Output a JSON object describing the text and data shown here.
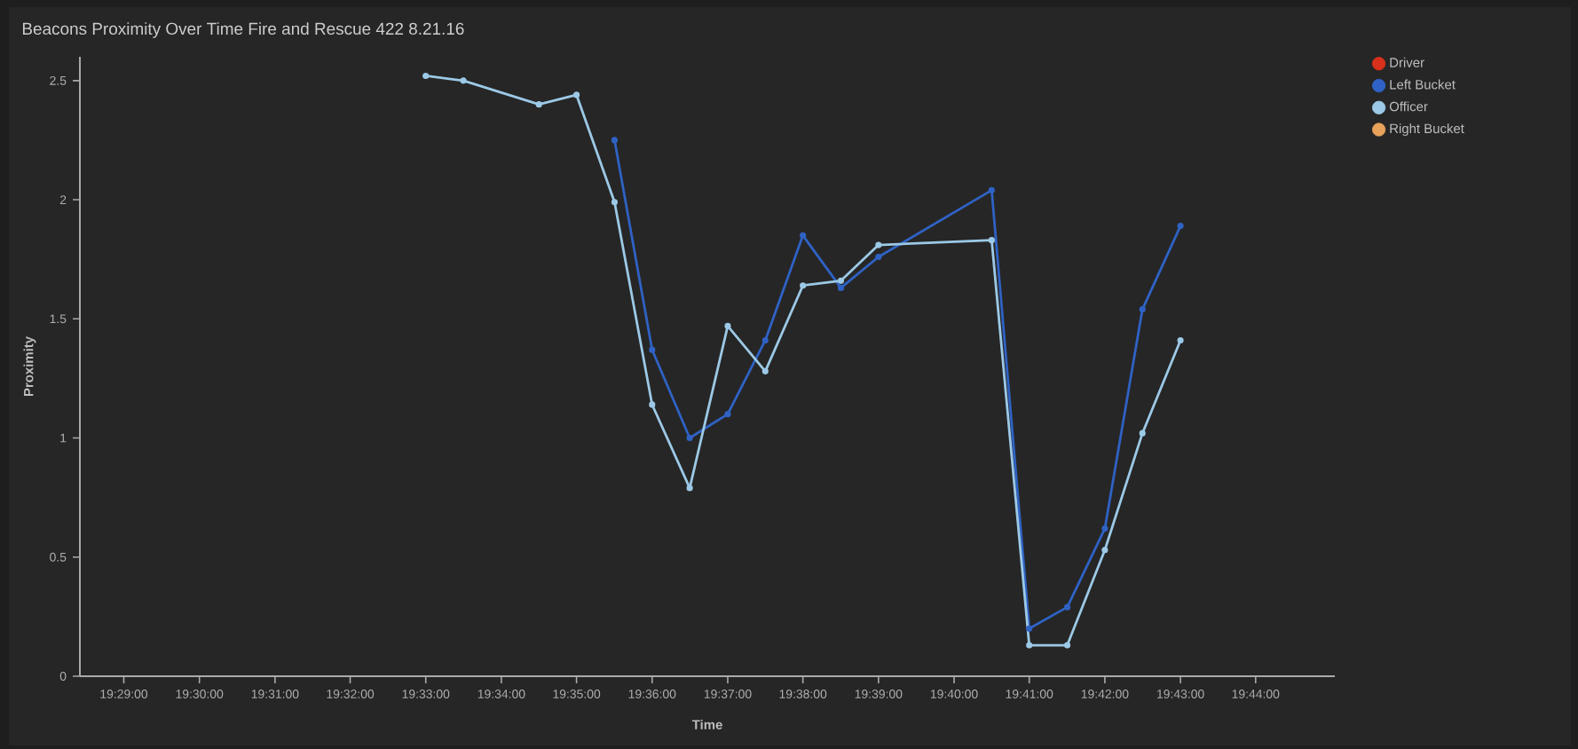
{
  "chart_data": {
    "type": "line",
    "title": "Beacons Proximity Over Time Fire and Rescue 422 8.21.16",
    "xlabel": "Time",
    "ylabel": "Proximity",
    "xlim": [
      19.4736,
      19.7508
    ],
    "ylim": [
      0,
      2.6
    ],
    "xticks": [
      {
        "value": 19.4833,
        "label": "19:29:00"
      },
      {
        "value": 19.5,
        "label": "19:30:00"
      },
      {
        "value": 19.5167,
        "label": "19:31:00"
      },
      {
        "value": 19.5333,
        "label": "19:32:00"
      },
      {
        "value": 19.55,
        "label": "19:33:00"
      },
      {
        "value": 19.5667,
        "label": "19:34:00"
      },
      {
        "value": 19.5833,
        "label": "19:35:00"
      },
      {
        "value": 19.6,
        "label": "19:36:00"
      },
      {
        "value": 19.6167,
        "label": "19:37:00"
      },
      {
        "value": 19.6333,
        "label": "19:38:00"
      },
      {
        "value": 19.65,
        "label": "19:39:00"
      },
      {
        "value": 19.6667,
        "label": "19:40:00"
      },
      {
        "value": 19.6833,
        "label": "19:41:00"
      },
      {
        "value": 19.7,
        "label": "19:42:00"
      },
      {
        "value": 19.7167,
        "label": "19:43:00"
      },
      {
        "value": 19.7333,
        "label": "19:44:00"
      }
    ],
    "yticks": [
      0,
      0.5,
      1,
      1.5,
      2,
      2.5
    ],
    "legend": "top right",
    "marker": "circle",
    "line_style": "solid",
    "series": [
      {
        "name": "Driver",
        "color": "#d9301c"
      },
      {
        "name": "Left Bucket",
        "color": "#2f62c4",
        "x": [
          19.5917,
          19.6,
          19.6083,
          19.6167,
          19.625,
          19.6333,
          19.6417,
          19.65,
          19.675,
          19.6833,
          19.6917,
          19.7,
          19.7083,
          19.7167
        ],
        "values": [
          2.25,
          1.37,
          1.0,
          1.1,
          1.41,
          1.85,
          1.63,
          1.76,
          2.04,
          0.2,
          0.29,
          0.62,
          1.54,
          1.89
        ]
      },
      {
        "name": "Officer",
        "color": "#9cc9e6",
        "x": [
          19.55,
          19.5583,
          19.575,
          19.5833,
          19.5917,
          19.6,
          19.6083,
          19.6167,
          19.625,
          19.6333,
          19.6417,
          19.65,
          19.675,
          19.6833,
          19.6917,
          19.7,
          19.7083,
          19.7167
        ],
        "values": [
          2.52,
          2.5,
          2.4,
          2.44,
          1.99,
          1.14,
          0.79,
          1.47,
          1.28,
          1.64,
          1.66,
          1.81,
          1.83,
          0.13,
          0.13,
          0.53,
          1.02,
          1.41
        ]
      },
      {
        "name": "Right Bucket",
        "color": "#e8a25a"
      }
    ]
  }
}
